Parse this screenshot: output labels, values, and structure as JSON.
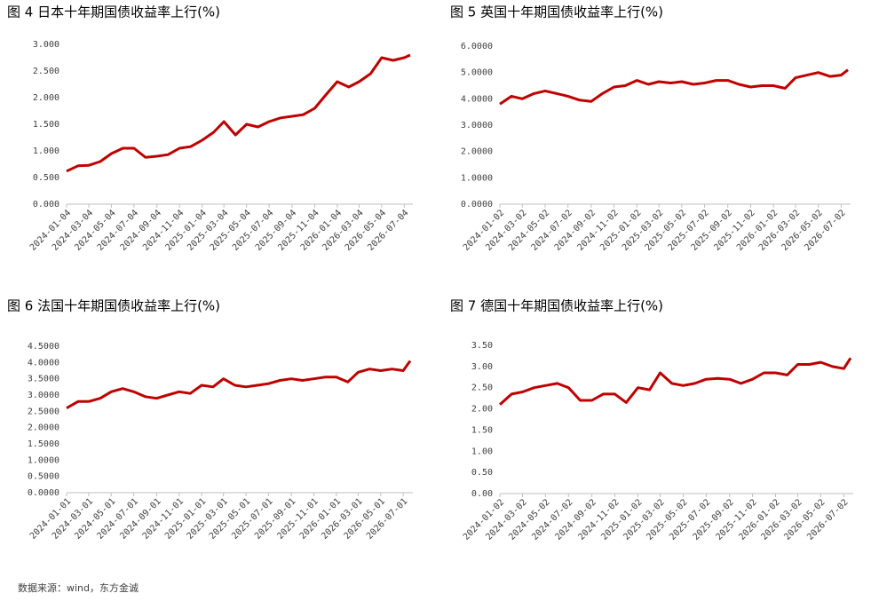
{
  "chart_data": [
    {
      "type": "line",
      "title": "图 4  日本十年期国债收益率上行(%)",
      "x": [
        "2024-01-04",
        "2024-02-04",
        "2024-03-04",
        "2024-04-04",
        "2024-05-04",
        "2024-06-04",
        "2024-07-04",
        "2024-08-04",
        "2024-09-04",
        "2024-10-04",
        "2024-11-04",
        "2024-12-04",
        "2025-01-04",
        "2025-02-04",
        "2025-03-04",
        "2025-04-04",
        "2025-05-04",
        "2025-06-04",
        "2025-07-04",
        "2025-08-04",
        "2025-09-04",
        "2025-10-04",
        "2025-11-04",
        "2025-12-04",
        "2026-01-04",
        "2026-02-04",
        "2026-03-04",
        "2026-04-04",
        "2026-05-04",
        "2026-06-04",
        "2026-07-04",
        "2026-07-20"
      ],
      "series": [
        {
          "color": "#c00000",
          "values": [
            0.62,
            0.72,
            0.73,
            0.8,
            0.95,
            1.05,
            1.05,
            0.88,
            0.9,
            0.93,
            1.05,
            1.08,
            1.2,
            1.35,
            1.55,
            1.3,
            1.5,
            1.45,
            1.55,
            1.62,
            1.65,
            1.68,
            1.8,
            2.05,
            2.3,
            2.2,
            2.3,
            2.45,
            2.75,
            2.7,
            2.75,
            2.8
          ]
        }
      ],
      "xlim": [
        "2024-01-04",
        "2026-07-20"
      ],
      "xticks": [
        "2024-01-04",
        "2024-03-04",
        "2024-05-04",
        "2024-07-04",
        "2024-09-04",
        "2024-11-04",
        "2025-01-04",
        "2025-03-04",
        "2025-05-04",
        "2025-07-04",
        "2025-09-04",
        "2025-11-04",
        "2026-01-04",
        "2026-03-04",
        "2026-05-04",
        "2026-07-04"
      ],
      "ylim": [
        0,
        3
      ],
      "yticks": [
        {
          "value": 0,
          "label": "0.000"
        },
        {
          "value": 0.5,
          "label": "0.500"
        },
        {
          "value": 1,
          "label": "1.000"
        },
        {
          "value": 1.5,
          "label": "1.500"
        },
        {
          "value": 2,
          "label": "2.000"
        },
        {
          "value": 2.5,
          "label": "2.500"
        },
        {
          "value": 3,
          "label": "3.000"
        }
      ]
    },
    {
      "type": "line",
      "title": "图 5  英国十年期国债收益率上行(%)",
      "x": [
        "2024-01-02",
        "2024-02-02",
        "2024-03-02",
        "2024-04-02",
        "2024-05-02",
        "2024-06-02",
        "2024-07-02",
        "2024-08-02",
        "2024-09-02",
        "2024-10-02",
        "2024-11-02",
        "2024-12-02",
        "2025-01-02",
        "2025-02-02",
        "2025-03-02",
        "2025-04-02",
        "2025-05-02",
        "2025-06-02",
        "2025-07-02",
        "2025-08-02",
        "2025-09-02",
        "2025-10-02",
        "2025-11-02",
        "2025-12-02",
        "2026-01-02",
        "2026-02-02",
        "2026-03-02",
        "2026-04-02",
        "2026-05-02",
        "2026-06-02",
        "2026-07-02",
        "2026-07-20"
      ],
      "series": [
        {
          "color": "#c00000",
          "values": [
            3.8,
            4.1,
            4.0,
            4.2,
            4.3,
            4.2,
            4.1,
            3.95,
            3.9,
            4.2,
            4.45,
            4.5,
            4.7,
            4.55,
            4.65,
            4.6,
            4.65,
            4.55,
            4.6,
            4.7,
            4.7,
            4.55,
            4.45,
            4.5,
            4.5,
            4.4,
            4.8,
            4.9,
            5.0,
            4.85,
            4.9,
            5.1
          ]
        }
      ],
      "xlim": [
        "2024-01-02",
        "2026-07-20"
      ],
      "xticks": [
        "2024-01-02",
        "2024-03-02",
        "2024-05-02",
        "2024-07-02",
        "2024-09-02",
        "2024-11-02",
        "2025-01-02",
        "2025-03-02",
        "2025-05-02",
        "2025-07-02",
        "2025-09-02",
        "2025-11-02",
        "2026-01-02",
        "2026-03-02",
        "2026-05-02",
        "2026-07-02"
      ],
      "ylim": [
        0,
        6
      ],
      "yticks": [
        {
          "value": 0,
          "label": "0.0000"
        },
        {
          "value": 1,
          "label": "1.0000"
        },
        {
          "value": 2,
          "label": "2.0000"
        },
        {
          "value": 3,
          "label": "3.0000"
        },
        {
          "value": 4,
          "label": "4.0000"
        },
        {
          "value": 5,
          "label": "5.0000"
        },
        {
          "value": 6,
          "label": "6.0000"
        }
      ]
    },
    {
      "type": "line",
      "title": "图 6  法国十年期国债收益率上行(%)",
      "x": [
        "2024-01-01",
        "2024-02-01",
        "2024-03-01",
        "2024-04-01",
        "2024-05-01",
        "2024-06-01",
        "2024-07-01",
        "2024-08-01",
        "2024-09-01",
        "2024-10-01",
        "2024-11-01",
        "2024-12-01",
        "2025-01-01",
        "2025-02-01",
        "2025-03-01",
        "2025-04-01",
        "2025-05-01",
        "2025-06-01",
        "2025-07-01",
        "2025-08-01",
        "2025-09-01",
        "2025-10-01",
        "2025-11-01",
        "2025-12-01",
        "2026-01-01",
        "2026-02-01",
        "2026-03-01",
        "2026-04-01",
        "2026-05-01",
        "2026-06-01",
        "2026-07-01",
        "2026-07-20"
      ],
      "series": [
        {
          "color": "#c00000",
          "values": [
            2.6,
            2.8,
            2.8,
            2.9,
            3.1,
            3.2,
            3.1,
            2.95,
            2.9,
            3.0,
            3.1,
            3.05,
            3.3,
            3.25,
            3.5,
            3.3,
            3.25,
            3.3,
            3.35,
            3.45,
            3.5,
            3.45,
            3.5,
            3.55,
            3.55,
            3.4,
            3.7,
            3.8,
            3.75,
            3.8,
            3.75,
            4.05
          ]
        }
      ],
      "xlim": [
        "2024-01-01",
        "2026-07-20"
      ],
      "xticks": [
        "2024-01-01",
        "2024-03-01",
        "2024-05-01",
        "2024-07-01",
        "2024-09-01",
        "2024-11-01",
        "2025-01-01",
        "2025-03-01",
        "2025-05-01",
        "2025-07-01",
        "2025-09-01",
        "2025-11-01",
        "2026-01-01",
        "2026-03-01",
        "2026-05-01",
        "2026-07-01"
      ],
      "ylim": [
        0,
        4.5
      ],
      "yticks": [
        {
          "value": 0,
          "label": "0.0000"
        },
        {
          "value": 0.5,
          "label": "0.5000"
        },
        {
          "value": 1,
          "label": "1.0000"
        },
        {
          "value": 1.5,
          "label": "1.5000"
        },
        {
          "value": 2,
          "label": "2.0000"
        },
        {
          "value": 2.5,
          "label": "2.5000"
        },
        {
          "value": 3,
          "label": "3.0000"
        },
        {
          "value": 3.5,
          "label": "3.5000"
        },
        {
          "value": 4,
          "label": "4.0000"
        },
        {
          "value": 4.5,
          "label": "4.5000"
        }
      ]
    },
    {
      "type": "line",
      "title": "图 7  德国十年期国债收益率上行(%)",
      "x": [
        "2024-01-02",
        "2024-02-02",
        "2024-03-02",
        "2024-04-02",
        "2024-05-02",
        "2024-06-02",
        "2024-07-02",
        "2024-08-02",
        "2024-09-02",
        "2024-10-02",
        "2024-11-02",
        "2024-12-02",
        "2025-01-02",
        "2025-02-02",
        "2025-03-02",
        "2025-04-02",
        "2025-05-02",
        "2025-06-02",
        "2025-07-02",
        "2025-08-02",
        "2025-09-02",
        "2025-10-02",
        "2025-11-02",
        "2025-12-02",
        "2026-01-02",
        "2026-02-02",
        "2026-03-02",
        "2026-04-02",
        "2026-05-02",
        "2026-06-02",
        "2026-07-02",
        "2026-07-20"
      ],
      "series": [
        {
          "color": "#c00000",
          "values": [
            2.1,
            2.35,
            2.4,
            2.5,
            2.55,
            2.6,
            2.5,
            2.2,
            2.2,
            2.35,
            2.35,
            2.15,
            2.5,
            2.45,
            2.85,
            2.6,
            2.55,
            2.6,
            2.7,
            2.72,
            2.7,
            2.6,
            2.7,
            2.85,
            2.85,
            2.8,
            3.05,
            3.05,
            3.1,
            3.0,
            2.95,
            3.2
          ]
        }
      ],
      "xlim": [
        "2024-01-02",
        "2026-07-20"
      ],
      "xticks": [
        "2024-01-02",
        "2024-03-02",
        "2024-05-02",
        "2024-07-02",
        "2024-09-02",
        "2024-11-02",
        "2025-01-02",
        "2025-03-02",
        "2025-05-02",
        "2025-07-02",
        "2025-09-02",
        "2025-11-02",
        "2026-01-02",
        "2026-03-02",
        "2026-05-02",
        "2026-07-02"
      ],
      "ylim": [
        0,
        3.5
      ],
      "yticks": [
        {
          "value": 0,
          "label": "0.00"
        },
        {
          "value": 0.5,
          "label": "0.50"
        },
        {
          "value": 1,
          "label": "1.00"
        },
        {
          "value": 1.5,
          "label": "1.50"
        },
        {
          "value": 2,
          "label": "2.00"
        },
        {
          "value": 2.5,
          "label": "2.50"
        },
        {
          "value": 3,
          "label": "3.00"
        },
        {
          "value": 3.5,
          "label": "3.50"
        }
      ]
    }
  ],
  "source": "数据来源：wind，东方金诚"
}
